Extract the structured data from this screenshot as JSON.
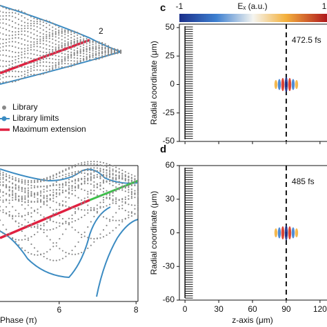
{
  "legend": [
    "Library",
    "Library limits",
    "Maximum extension"
  ],
  "curve_label": "2",
  "chart_data": [
    {
      "type": "phase",
      "xlabel": "Phase (π)",
      "xlim": [
        4.46,
        8.05
      ],
      "xticks": [
        6,
        8
      ]
    },
    {
      "type": "field",
      "panel": "c",
      "annotation": "472.5 fs",
      "ylabel": "Radial coordinate (μm)",
      "colorbar_label": "Eₓ (a.u.)",
      "colorbar_ticks": [
        -1,
        1
      ],
      "xlim": [
        -5,
        125
      ],
      "xticks": [
        0,
        30,
        60,
        90,
        120
      ],
      "ylim": [
        -50,
        53
      ],
      "yticks": [
        50,
        25,
        0,
        -25,
        -50
      ],
      "marker_z": 90
    },
    {
      "type": "field",
      "panel": "d",
      "annotation": "485 fs",
      "ylabel": "Radial coordinate (μm)",
      "xlabel": "z-axis (μm)",
      "xlim": [
        -5,
        125
      ],
      "xticks": [
        0,
        30,
        60,
        90,
        120
      ],
      "ylim": [
        -60,
        60
      ],
      "yticks": [
        60,
        30,
        0,
        -30,
        -60
      ],
      "marker_z": 90
    }
  ]
}
